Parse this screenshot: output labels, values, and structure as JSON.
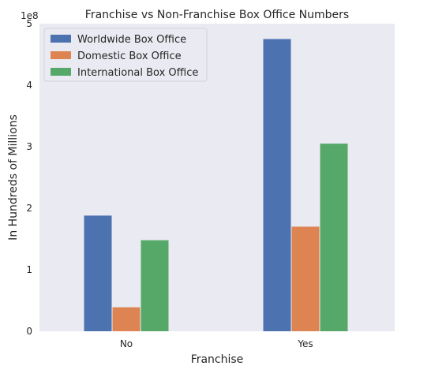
{
  "chart_data": {
    "type": "bar",
    "title": "Franchise vs Non-Franchise Box Office Numbers",
    "xlabel": "Franchise",
    "ylabel": "In Hundreds of Millions",
    "y_offset_label": "1e8",
    "categories": [
      "No",
      "Yes"
    ],
    "series": [
      {
        "name": "Worldwide Box Office",
        "color": "#4C72B0",
        "values": [
          188000000,
          475000000
        ]
      },
      {
        "name": "Domestic Box Office",
        "color": "#DD8452",
        "values": [
          39000000,
          170000000
        ]
      },
      {
        "name": "International Box Office",
        "color": "#55A868",
        "values": [
          148000000,
          305000000
        ]
      }
    ],
    "ylim": [
      0,
      500000000
    ],
    "yticks": [
      0,
      100000000,
      200000000,
      300000000,
      400000000,
      500000000
    ],
    "ytick_labels": [
      "0",
      "1",
      "2",
      "3",
      "4",
      "5"
    ],
    "grid": false,
    "legend_position": "top-left",
    "plot_background": "#EAEAF2"
  }
}
